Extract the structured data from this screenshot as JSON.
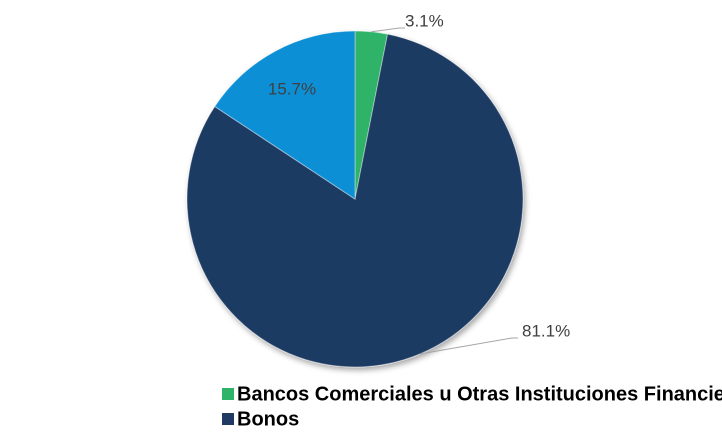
{
  "chart_data": {
    "type": "pie",
    "categories": [
      "Bancos Comerciales u Otras Instituciones Financieras",
      "Bonos",
      null
    ],
    "values": [
      3.1,
      81.1,
      15.7
    ],
    "value_labels": [
      "3.1%",
      "81.1%",
      "15.7%"
    ],
    "colors": [
      "#2fb368",
      "#1f3a63",
      "#0c8fd6"
    ],
    "legend": "bottom-left"
  }
}
